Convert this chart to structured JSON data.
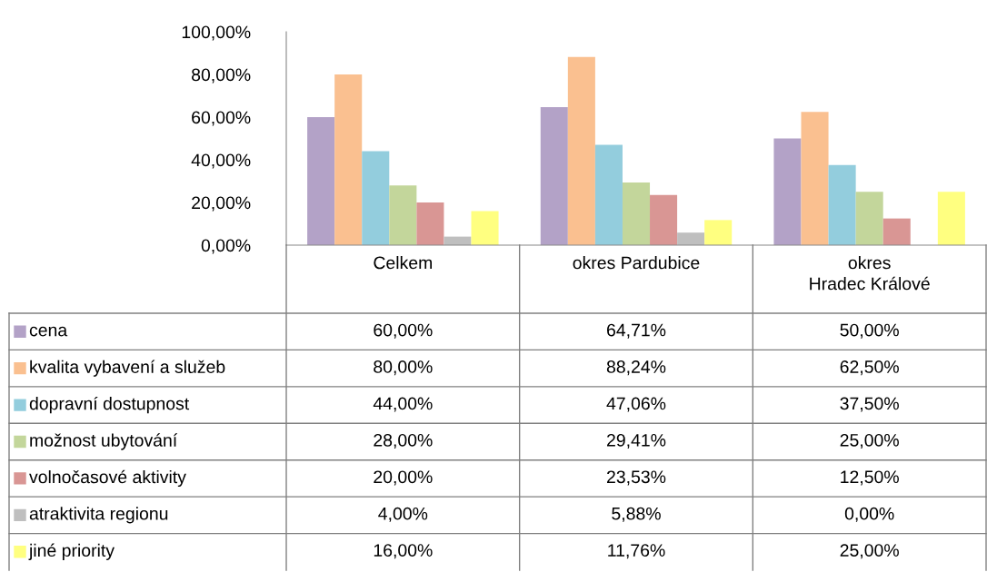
{
  "chart_data": {
    "type": "bar",
    "categories": [
      "Celkem",
      "okres Pardubice",
      "okres\nHradec Králové"
    ],
    "series": [
      {
        "name": "cena",
        "color": "#b3a2c7",
        "values": [
          60.0,
          64.71,
          50.0
        ],
        "value_labels": [
          "60,00%",
          "64,71%",
          "50,00%"
        ]
      },
      {
        "name": "kvalita vybavení a služeb",
        "color": "#fac090",
        "values": [
          80.0,
          88.24,
          62.5
        ],
        "value_labels": [
          "80,00%",
          "88,24%",
          "62,50%"
        ]
      },
      {
        "name": "dopravní dostupnost",
        "color": "#93cddd",
        "values": [
          44.0,
          47.06,
          37.5
        ],
        "value_labels": [
          "44,00%",
          "47,06%",
          "37,50%"
        ]
      },
      {
        "name": "možnost ubytování",
        "color": "#c3d69b",
        "values": [
          28.0,
          29.41,
          25.0
        ],
        "value_labels": [
          "28,00%",
          "29,41%",
          "25,00%"
        ]
      },
      {
        "name": "volnočasové aktivity",
        "color": "#d99694",
        "values": [
          20.0,
          23.53,
          12.5
        ],
        "value_labels": [
          "20,00%",
          "23,53%",
          "12,50%"
        ]
      },
      {
        "name": "atraktivita regionu",
        "color": "#bfbfbf",
        "values": [
          4.0,
          5.88,
          0.0
        ],
        "value_labels": [
          "4,00%",
          "5,88%",
          "0,00%"
        ]
      },
      {
        "name": "jiné priority",
        "color": "#ffff80",
        "values": [
          16.0,
          11.76,
          25.0
        ],
        "value_labels": [
          "16,00%",
          "11,76%",
          "25,00%"
        ]
      }
    ],
    "ylim": [
      0,
      100
    ],
    "yticks": [
      {
        "value": 0,
        "label": "0,00%"
      },
      {
        "value": 20,
        "label": "20,00%"
      },
      {
        "value": 40,
        "label": "40,00%"
      },
      {
        "value": 60,
        "label": "60,00%"
      },
      {
        "value": 80,
        "label": "80,00%"
      },
      {
        "value": 100,
        "label": "100,00%"
      }
    ],
    "grid": false,
    "legend": "bottom left"
  }
}
